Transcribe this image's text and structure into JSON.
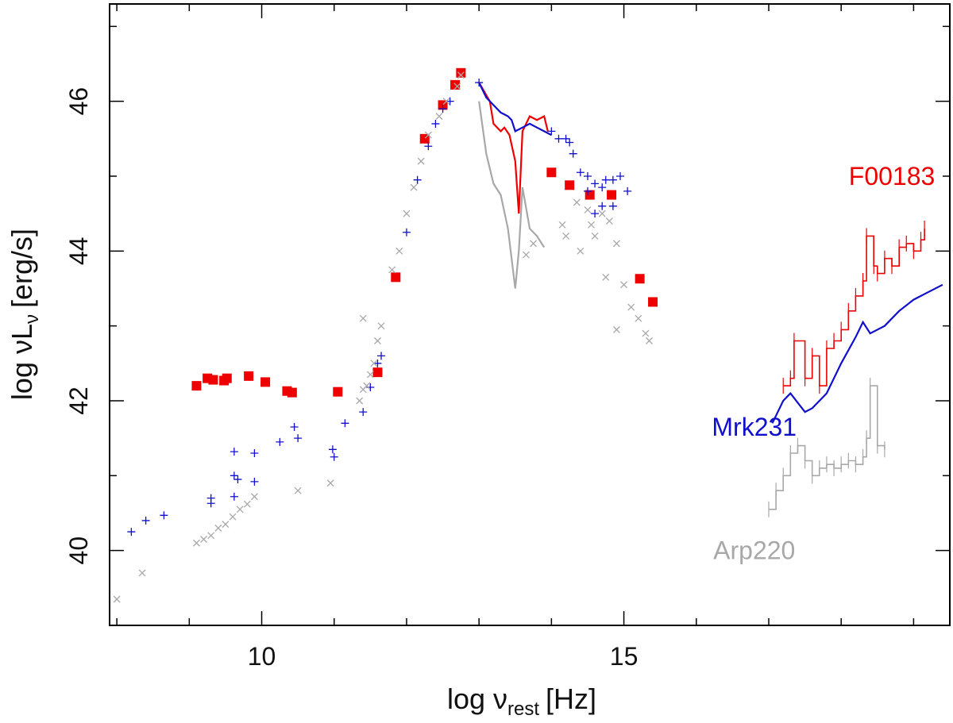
{
  "chart_data": {
    "type": "scatter",
    "xlim": [
      7.9,
      19.5
    ],
    "ylim": [
      39,
      47.3
    ],
    "xlabel": {
      "main": "log ν",
      "sub": "rest",
      "unit": "[Hz]"
    },
    "ylabel": {
      "main": "log νL",
      "sub": "ν",
      "unit": "[erg/s]"
    },
    "x_ticks": [
      10,
      15
    ],
    "x_tick_labels": [
      "10",
      "15"
    ],
    "x_minor_ticks": [
      8,
      9,
      11,
      12,
      13,
      14,
      16,
      17,
      18,
      19
    ],
    "y_ticks": [
      40,
      42,
      44,
      46
    ],
    "y_tick_labels": [
      "40",
      "42",
      "44",
      "46"
    ],
    "y_minor_ticks": [
      39,
      41,
      43,
      45,
      47
    ],
    "colors": {
      "F00183": "#ee0000",
      "Mrk231": "#1010cc",
      "Arp220": "#a8a8a8"
    },
    "labels": [
      {
        "id": "F00183",
        "text": "F00183",
        "color": "#ee0000",
        "x": 18.7,
        "y": 45.0
      },
      {
        "id": "Mrk231",
        "text": "Mrk231",
        "color": "#1010cc",
        "x": 16.8,
        "y": 41.65
      },
      {
        "id": "Arp220",
        "text": "Arp220",
        "color": "#a8a8a8",
        "x": 16.8,
        "y": 40.0
      }
    ],
    "series": [
      {
        "name": "F00183 photometry",
        "marker": "square",
        "color": "#ee0000",
        "points": [
          [
            9.1,
            42.2
          ],
          [
            9.25,
            42.3
          ],
          [
            9.33,
            42.28
          ],
          [
            9.48,
            42.27
          ],
          [
            9.52,
            42.3
          ],
          [
            9.82,
            42.33
          ],
          [
            10.05,
            42.25
          ],
          [
            10.35,
            42.13
          ],
          [
            10.42,
            42.11
          ],
          [
            11.05,
            42.12
          ],
          [
            11.6,
            42.38
          ],
          [
            11.85,
            43.65
          ],
          [
            12.25,
            45.5
          ],
          [
            12.5,
            45.95
          ],
          [
            12.67,
            46.22
          ],
          [
            12.75,
            46.38
          ],
          [
            14.0,
            45.05
          ],
          [
            14.25,
            44.88
          ],
          [
            14.53,
            44.75
          ],
          [
            14.83,
            44.75
          ],
          [
            15.22,
            43.63
          ],
          [
            15.4,
            43.32
          ]
        ]
      },
      {
        "name": "Mrk231 photometry",
        "marker": "plus",
        "color": "#1010cc",
        "points": [
          [
            8.2,
            40.25
          ],
          [
            8.4,
            40.4
          ],
          [
            8.65,
            40.47
          ],
          [
            9.3,
            40.7
          ],
          [
            9.3,
            40.63
          ],
          [
            9.62,
            40.72
          ],
          [
            9.62,
            41.0
          ],
          [
            9.62,
            41.32
          ],
          [
            9.67,
            40.95
          ],
          [
            9.9,
            41.3
          ],
          [
            9.9,
            40.92
          ],
          [
            10.25,
            41.45
          ],
          [
            10.45,
            41.65
          ],
          [
            10.5,
            41.5
          ],
          [
            10.98,
            41.35
          ],
          [
            11.0,
            41.25
          ],
          [
            11.15,
            41.7
          ],
          [
            11.4,
            41.85
          ],
          [
            11.5,
            42.18
          ],
          [
            11.6,
            42.5
          ],
          [
            11.65,
            42.6
          ],
          [
            12.0,
            44.25
          ],
          [
            12.15,
            44.95
          ],
          [
            12.3,
            45.4
          ],
          [
            12.4,
            45.7
          ],
          [
            12.5,
            45.9
          ],
          [
            12.6,
            46.0
          ],
          [
            13.0,
            46.25
          ],
          [
            14.0,
            45.6
          ],
          [
            14.1,
            45.5
          ],
          [
            14.2,
            45.5
          ],
          [
            14.25,
            45.45
          ],
          [
            14.3,
            45.3
          ],
          [
            14.4,
            45.05
          ],
          [
            14.5,
            45.0
          ],
          [
            14.6,
            44.9
          ],
          [
            14.7,
            44.85
          ],
          [
            14.75,
            44.95
          ],
          [
            14.85,
            44.95
          ],
          [
            14.95,
            45.0
          ],
          [
            15.05,
            44.8
          ],
          [
            14.5,
            44.8
          ],
          [
            14.6,
            44.5
          ],
          [
            14.7,
            44.6
          ],
          [
            14.85,
            44.6
          ]
        ]
      },
      {
        "name": "Arp220 photometry",
        "marker": "cross",
        "color": "#a8a8a8",
        "points": [
          [
            8.0,
            39.35
          ],
          [
            8.35,
            39.7
          ],
          [
            9.1,
            40.1
          ],
          [
            9.2,
            40.15
          ],
          [
            9.3,
            40.2
          ],
          [
            9.4,
            40.3
          ],
          [
            9.5,
            40.35
          ],
          [
            9.6,
            40.45
          ],
          [
            9.7,
            40.55
          ],
          [
            9.8,
            40.62
          ],
          [
            9.9,
            40.72
          ],
          [
            10.5,
            40.8
          ],
          [
            10.95,
            40.9
          ],
          [
            11.35,
            42.0
          ],
          [
            11.4,
            42.15
          ],
          [
            11.45,
            42.2
          ],
          [
            11.5,
            42.35
          ],
          [
            11.55,
            42.5
          ],
          [
            11.6,
            42.8
          ],
          [
            11.65,
            43.0
          ],
          [
            11.4,
            43.1
          ],
          [
            11.8,
            43.75
          ],
          [
            11.9,
            44.0
          ],
          [
            12.0,
            44.5
          ],
          [
            12.1,
            44.85
          ],
          [
            12.2,
            45.2
          ],
          [
            12.3,
            45.55
          ],
          [
            12.45,
            45.8
          ],
          [
            12.55,
            46.0
          ],
          [
            12.7,
            46.2
          ],
          [
            12.75,
            46.35
          ],
          [
            13.65,
            43.95
          ],
          [
            13.75,
            44.1
          ],
          [
            14.15,
            44.35
          ],
          [
            14.2,
            44.2
          ],
          [
            14.35,
            44.65
          ],
          [
            14.4,
            44.0
          ],
          [
            14.5,
            44.55
          ],
          [
            14.55,
            44.35
          ],
          [
            14.6,
            44.2
          ],
          [
            14.7,
            44.5
          ],
          [
            14.75,
            43.65
          ],
          [
            14.8,
            44.4
          ],
          [
            14.9,
            44.1
          ],
          [
            15.0,
            43.55
          ],
          [
            14.9,
            42.95
          ],
          [
            15.1,
            43.25
          ],
          [
            15.2,
            43.1
          ],
          [
            15.3,
            42.9
          ],
          [
            15.35,
            42.8
          ]
        ]
      },
      {
        "name": "F00183 IR spectrum",
        "marker": "line",
        "color": "#ee0000",
        "points": [
          [
            13.0,
            46.25
          ],
          [
            13.15,
            46.0
          ],
          [
            13.2,
            45.7
          ],
          [
            13.3,
            45.6
          ],
          [
            13.35,
            45.65
          ],
          [
            13.42,
            45.55
          ],
          [
            13.5,
            45.2
          ],
          [
            13.55,
            44.5
          ],
          [
            13.6,
            45.6
          ],
          [
            13.7,
            45.8
          ],
          [
            13.8,
            45.75
          ],
          [
            13.9,
            45.8
          ],
          [
            13.95,
            45.6
          ]
        ]
      },
      {
        "name": "Mrk231 IR spectrum",
        "marker": "line",
        "color": "#1010cc",
        "points": [
          [
            13.0,
            46.25
          ],
          [
            13.1,
            46.05
          ],
          [
            13.2,
            45.95
          ],
          [
            13.3,
            45.85
          ],
          [
            13.4,
            45.8
          ],
          [
            13.45,
            45.75
          ],
          [
            13.5,
            45.6
          ],
          [
            13.6,
            45.65
          ],
          [
            13.7,
            45.7
          ],
          [
            13.8,
            45.65
          ],
          [
            13.9,
            45.6
          ],
          [
            14.0,
            45.55
          ]
        ]
      },
      {
        "name": "Arp220 IR spectrum",
        "marker": "line",
        "color": "#a8a8a8",
        "points": [
          [
            13.0,
            46.0
          ],
          [
            13.1,
            45.3
          ],
          [
            13.2,
            44.9
          ],
          [
            13.3,
            44.75
          ],
          [
            13.4,
            44.3
          ],
          [
            13.5,
            43.5
          ],
          [
            13.55,
            44.0
          ],
          [
            13.6,
            44.85
          ],
          [
            13.7,
            44.3
          ],
          [
            13.8,
            44.2
          ],
          [
            13.9,
            44.05
          ]
        ]
      },
      {
        "name": "F00183 X-ray spectrum",
        "marker": "step",
        "color": "#ee0000",
        "points": [
          [
            17.2,
            42.2
          ],
          [
            17.3,
            42.3
          ],
          [
            17.35,
            42.8
          ],
          [
            17.5,
            42.3
          ],
          [
            17.6,
            42.6
          ],
          [
            17.7,
            42.2
          ],
          [
            17.8,
            42.7
          ],
          [
            17.9,
            42.8
          ],
          [
            18.0,
            42.95
          ],
          [
            18.1,
            43.2
          ],
          [
            18.2,
            43.4
          ],
          [
            18.3,
            43.6
          ],
          [
            18.35,
            44.2
          ],
          [
            18.45,
            43.8
          ],
          [
            18.5,
            43.7
          ],
          [
            18.6,
            43.9
          ],
          [
            18.7,
            43.8
          ],
          [
            18.8,
            44.05
          ],
          [
            18.9,
            44.1
          ],
          [
            19.0,
            44.0
          ],
          [
            19.1,
            44.15
          ],
          [
            19.15,
            44.3
          ]
        ]
      },
      {
        "name": "Mrk231 X-ray spectrum",
        "marker": "line",
        "color": "#1010cc",
        "points": [
          [
            17.05,
            41.7
          ],
          [
            17.2,
            42.0
          ],
          [
            17.3,
            42.1
          ],
          [
            17.5,
            41.85
          ],
          [
            17.6,
            41.9
          ],
          [
            17.8,
            42.1
          ],
          [
            18.0,
            42.5
          ],
          [
            18.2,
            42.85
          ],
          [
            18.3,
            43.05
          ],
          [
            18.4,
            42.9
          ],
          [
            18.6,
            43.0
          ],
          [
            18.8,
            43.2
          ],
          [
            19.0,
            43.35
          ],
          [
            19.2,
            43.45
          ],
          [
            19.4,
            43.55
          ]
        ]
      },
      {
        "name": "Arp220 X-ray spectrum",
        "marker": "step",
        "color": "#a8a8a8",
        "points": [
          [
            17.0,
            40.55
          ],
          [
            17.1,
            40.8
          ],
          [
            17.2,
            41.0
          ],
          [
            17.3,
            41.3
          ],
          [
            17.4,
            41.4
          ],
          [
            17.5,
            41.2
          ],
          [
            17.6,
            41.0
          ],
          [
            17.7,
            41.1
          ],
          [
            17.8,
            41.15
          ],
          [
            17.9,
            41.1
          ],
          [
            18.0,
            41.15
          ],
          [
            18.1,
            41.2
          ],
          [
            18.2,
            41.15
          ],
          [
            18.3,
            41.25
          ],
          [
            18.35,
            41.5
          ],
          [
            18.4,
            42.2
          ],
          [
            18.5,
            41.4
          ],
          [
            18.6,
            41.35
          ]
        ]
      }
    ]
  }
}
